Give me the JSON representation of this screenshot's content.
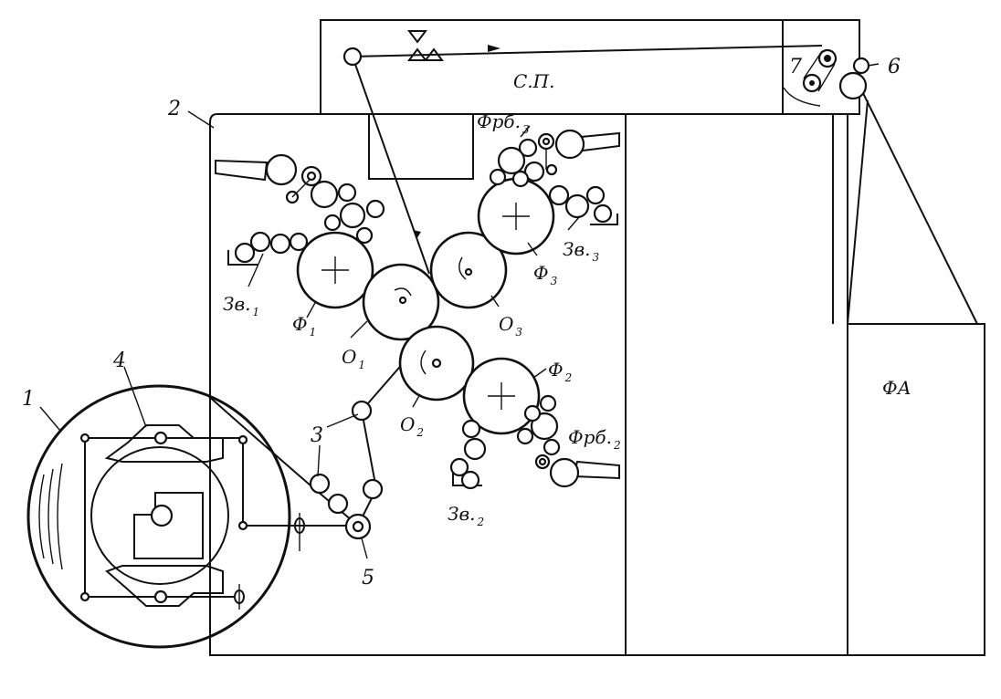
{
  "labels": {
    "n1": "1",
    "n2": "2",
    "n3": "3",
    "n4": "4",
    "n5": "5",
    "n6": "6",
    "n7": "7",
    "sp": "С.П.",
    "fa": "ФА",
    "f1": "Ф",
    "f1_sub": "1",
    "f2": "Ф",
    "f2_sub": "2",
    "f3": "Ф",
    "f3_sub": "3",
    "o1": "О",
    "o1_sub": "1",
    "o2": "О",
    "o2_sub": "2",
    "o3": "О",
    "o3_sub": "3",
    "zv1": "Зв.",
    "zv1_sub": "1",
    "zv2": "Зв.",
    "zv2_sub": "2",
    "zv3": "Зв.",
    "zv3_sub": "3",
    "frb2": "Фрб.",
    "frb2_sub": "2",
    "frb3": "Фрб.",
    "frb3_sub": "3"
  }
}
